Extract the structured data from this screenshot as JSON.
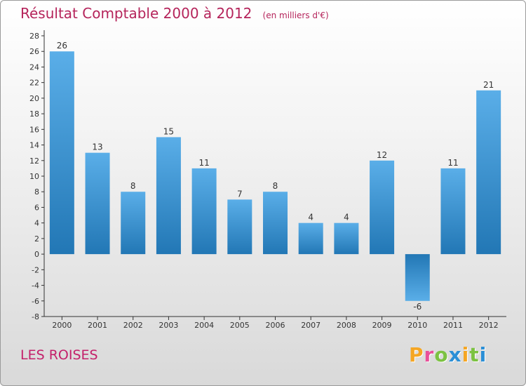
{
  "chart_data": {
    "type": "bar",
    "title": "Résultat Comptable 2000 à 2012",
    "unit_label": "(en milliers d'€)",
    "xlabel": "",
    "ylabel": "",
    "categories": [
      "2000",
      "2001",
      "2002",
      "2003",
      "2004",
      "2005",
      "2006",
      "2007",
      "2008",
      "2009",
      "2010",
      "2011",
      "2012"
    ],
    "values": [
      26,
      13,
      8,
      15,
      11,
      7,
      8,
      4,
      4,
      12,
      -6,
      11,
      21
    ],
    "ylim": [
      -8,
      28
    ],
    "ytick_step": 2,
    "grid": false,
    "colors": {
      "bar_top": "#5aaee8",
      "bar_bottom": "#2277b5",
      "axis": "#333333"
    }
  },
  "commune": "LES ROISES",
  "logo": {
    "letters": [
      "P",
      "r",
      "o",
      "x",
      "i",
      "t",
      "i"
    ],
    "colors": [
      "#f5a623",
      "#e94f9a",
      "#7cc242",
      "#2b8fd6",
      "#f5a623",
      "#7cc242",
      "#2b8fd6"
    ]
  }
}
